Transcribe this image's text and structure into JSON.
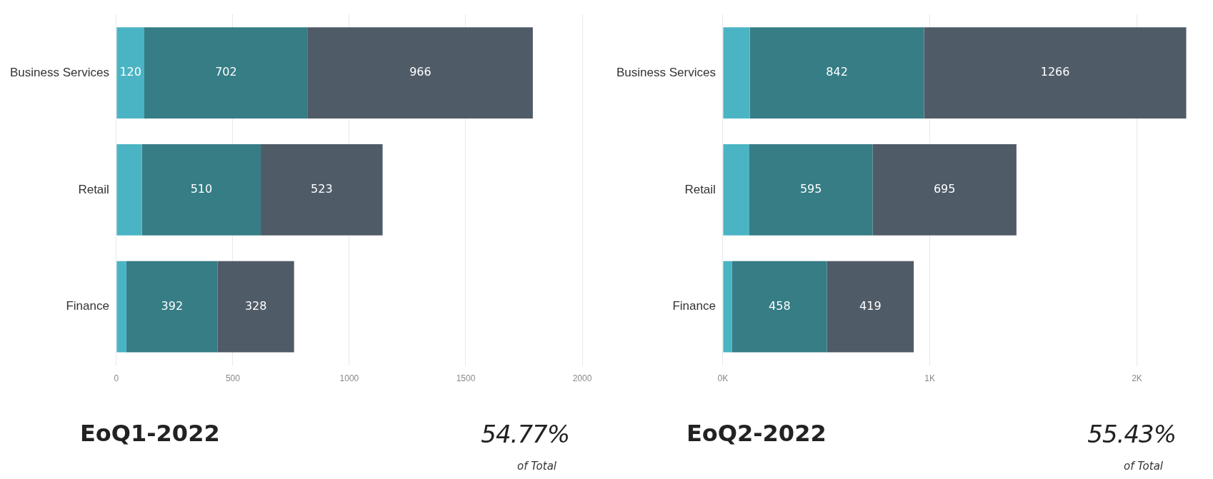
{
  "chart_data": [
    {
      "type": "bar",
      "orientation": "horizontal",
      "stacked": true,
      "title": "EoQ1-2022",
      "annotations": [
        "54.77%",
        "of Total"
      ],
      "categories": [
        "Business Services",
        "Retail",
        "Finance"
      ],
      "series": [
        {
          "color": "#4bb4c4",
          "values": [
            120,
            110,
            43
          ],
          "value_labels": [
            "120",
            null,
            null
          ]
        },
        {
          "color": "#367d85",
          "values": [
            702,
            510,
            392
          ],
          "value_labels": [
            "702",
            "510",
            "392"
          ]
        },
        {
          "color": "#505b68",
          "values": [
            966,
            523,
            328
          ],
          "value_labels": [
            "966",
            "523",
            "328"
          ]
        }
      ],
      "xlim": [
        0,
        2000
      ],
      "xticks": [
        0,
        500,
        1000,
        1500,
        2000
      ],
      "grid": "x",
      "legend": false
    },
    {
      "type": "bar",
      "orientation": "horizontal",
      "stacked": true,
      "title": "EoQ2-2022",
      "annotations": [
        "55.43%",
        "of Total"
      ],
      "categories": [
        "Business Services",
        "Retail",
        "Finance"
      ],
      "series": [
        {
          "color": "#4bb4c4",
          "values": [
            130,
            128,
            45
          ]
        },
        {
          "color": "#367d85",
          "values": [
            842,
            595,
            458
          ],
          "value_labels": [
            "842",
            "595",
            "458"
          ]
        },
        {
          "color": "#505b68",
          "values": [
            1266,
            695,
            419
          ],
          "value_labels": [
            "1266",
            "695",
            "419"
          ]
        }
      ],
      "xlim": [
        0,
        2250
      ],
      "xticks": [
        {
          "value": 0,
          "label": "0K"
        },
        {
          "value": 1000,
          "label": "1K"
        },
        {
          "value": 2000,
          "label": "2K"
        }
      ],
      "grid": "x",
      "legend": false
    }
  ]
}
